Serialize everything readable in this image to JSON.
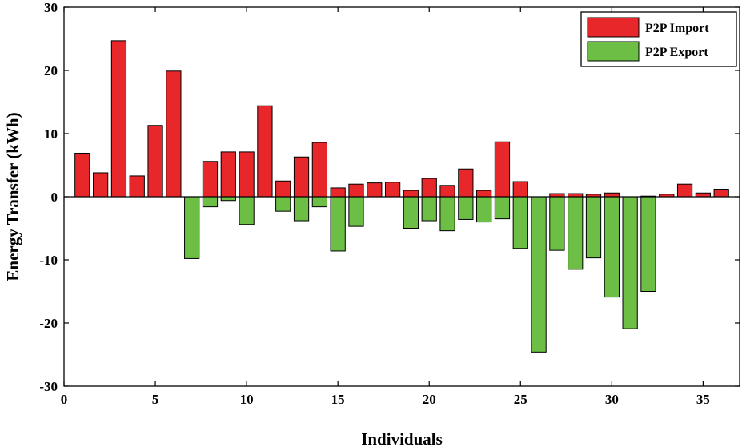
{
  "chart_data": {
    "type": "bar",
    "xlabel": "Individuals",
    "ylabel": "Energy Transfer (kWh)",
    "xlim": [
      0,
      37
    ],
    "ylim": [
      -30,
      30
    ],
    "xticks": [
      0,
      5,
      10,
      15,
      20,
      25,
      30,
      35
    ],
    "yticks": [
      30,
      20,
      10,
      0,
      -10,
      -20,
      -30
    ],
    "grid": false,
    "legend_position": "top-right",
    "x": [
      1,
      2,
      3,
      4,
      5,
      6,
      7,
      8,
      9,
      10,
      11,
      12,
      13,
      14,
      15,
      16,
      17,
      18,
      19,
      20,
      21,
      22,
      23,
      24,
      25,
      26,
      27,
      28,
      29,
      30,
      31,
      32,
      33,
      34,
      35,
      36
    ],
    "series": [
      {
        "name": "P2P Import",
        "color": "#e8272b",
        "values": [
          6.9,
          3.8,
          24.7,
          3.3,
          11.3,
          19.9,
          0,
          5.6,
          7.1,
          7.1,
          14.4,
          2.5,
          6.3,
          8.6,
          1.4,
          2.0,
          2.2,
          2.3,
          1.0,
          2.9,
          1.8,
          4.4,
          1.0,
          8.7,
          2.4,
          0,
          0.5,
          0.5,
          0.4,
          0.6,
          0,
          0.1,
          0.4,
          2.0,
          0.6,
          1.2
        ]
      },
      {
        "name": "P2P Export",
        "color": "#6cbe45",
        "values": [
          0,
          0,
          0,
          0,
          0,
          0,
          -9.8,
          -1.6,
          -0.6,
          -4.4,
          0,
          -2.3,
          -3.8,
          -1.6,
          -8.6,
          -4.7,
          0,
          0,
          -5.0,
          -3.8,
          -5.4,
          -3.6,
          -4.0,
          -3.5,
          -8.2,
          -24.6,
          -8.5,
          -11.5,
          -9.7,
          -15.9,
          -20.9,
          -15.0,
          0,
          0,
          0,
          0
        ]
      }
    ]
  }
}
